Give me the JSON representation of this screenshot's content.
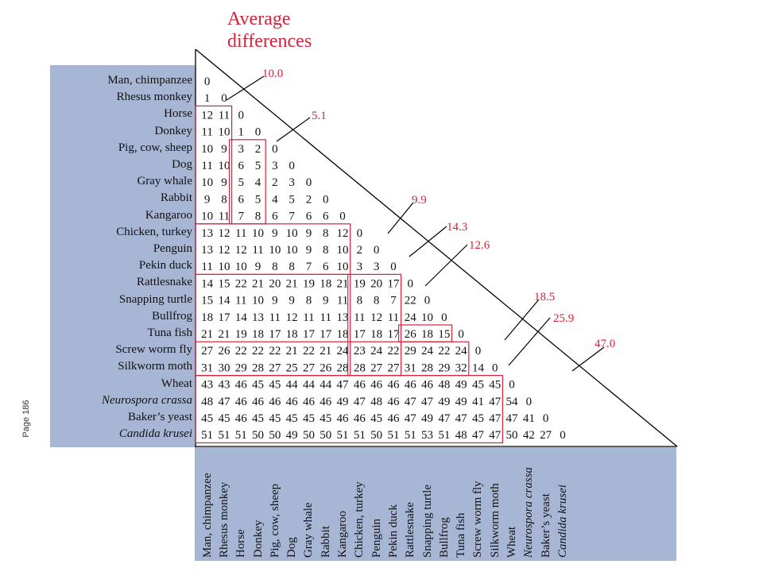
{
  "page_label": "Page 186",
  "title": [
    "Average",
    "differences"
  ],
  "species": [
    {
      "name": "Man, chimpanzee",
      "italic": false
    },
    {
      "name": "Rhesus monkey",
      "italic": false
    },
    {
      "name": "Horse",
      "italic": false
    },
    {
      "name": "Donkey",
      "italic": false
    },
    {
      "name": "Pig, cow, sheep",
      "italic": false
    },
    {
      "name": "Dog",
      "italic": false
    },
    {
      "name": "Gray whale",
      "italic": false
    },
    {
      "name": "Rabbit",
      "italic": false
    },
    {
      "name": "Kangaroo",
      "italic": false
    },
    {
      "name": "Chicken, turkey",
      "italic": false
    },
    {
      "name": "Penguin",
      "italic": false
    },
    {
      "name": "Pekin duck",
      "italic": false
    },
    {
      "name": "Rattlesnake",
      "italic": false
    },
    {
      "name": "Snapping turtle",
      "italic": false
    },
    {
      "name": "Bullfrog",
      "italic": false
    },
    {
      "name": "Tuna fish",
      "italic": false
    },
    {
      "name": "Screw worm fly",
      "italic": false
    },
    {
      "name": "Silkworm moth",
      "italic": false
    },
    {
      "name": "Wheat",
      "italic": false
    },
    {
      "name": "Neurospora crassa",
      "italic": true
    },
    {
      "name": "Baker’s yeast",
      "italic": false
    },
    {
      "name": "Candida krusei",
      "italic": true
    }
  ],
  "matrix": [
    [
      0
    ],
    [
      1,
      0
    ],
    [
      12,
      11,
      0
    ],
    [
      11,
      10,
      1,
      0
    ],
    [
      10,
      9,
      3,
      2,
      0
    ],
    [
      11,
      10,
      6,
      5,
      3,
      0
    ],
    [
      10,
      9,
      5,
      4,
      2,
      3,
      0
    ],
    [
      9,
      8,
      6,
      5,
      4,
      5,
      2,
      0
    ],
    [
      10,
      11,
      7,
      8,
      6,
      7,
      6,
      6,
      0
    ],
    [
      13,
      12,
      11,
      10,
      9,
      10,
      9,
      8,
      12,
      0
    ],
    [
      13,
      12,
      12,
      11,
      10,
      10,
      9,
      8,
      10,
      2,
      0
    ],
    [
      11,
      10,
      10,
      9,
      8,
      8,
      7,
      6,
      10,
      3,
      3,
      0
    ],
    [
      14,
      15,
      22,
      21,
      20,
      21,
      19,
      18,
      21,
      19,
      20,
      17,
      0
    ],
    [
      15,
      14,
      11,
      10,
      9,
      9,
      8,
      9,
      11,
      8,
      8,
      7,
      22,
      0
    ],
    [
      18,
      17,
      14,
      13,
      11,
      12,
      11,
      11,
      13,
      11,
      12,
      11,
      24,
      10,
      0
    ],
    [
      21,
      21,
      19,
      18,
      17,
      18,
      17,
      17,
      18,
      17,
      18,
      17,
      26,
      18,
      15,
      0
    ],
    [
      27,
      26,
      22,
      22,
      22,
      21,
      22,
      21,
      24,
      23,
      24,
      22,
      29,
      24,
      22,
      24,
      0
    ],
    [
      31,
      30,
      29,
      28,
      27,
      25,
      27,
      26,
      28,
      28,
      27,
      27,
      31,
      28,
      29,
      32,
      14,
      0
    ],
    [
      43,
      43,
      46,
      45,
      45,
      44,
      44,
      44,
      47,
      46,
      46,
      46,
      46,
      46,
      48,
      49,
      45,
      45,
      0
    ],
    [
      48,
      47,
      46,
      46,
      46,
      46,
      46,
      46,
      49,
      47,
      48,
      46,
      47,
      47,
      49,
      49,
      41,
      47,
      54,
      0
    ],
    [
      45,
      45,
      46,
      45,
      45,
      45,
      45,
      45,
      46,
      46,
      45,
      46,
      47,
      49,
      47,
      47,
      45,
      47,
      47,
      41,
      0
    ],
    [
      51,
      51,
      51,
      50,
      50,
      49,
      50,
      50,
      51,
      51,
      50,
      51,
      51,
      53,
      51,
      48,
      47,
      47,
      50,
      42,
      27,
      0
    ]
  ],
  "annotations": [
    {
      "text": "10.0"
    },
    {
      "text": "5.1"
    },
    {
      "text": "9.9"
    },
    {
      "text": "14.3"
    },
    {
      "text": "12.6"
    },
    {
      "text": "18.5"
    },
    {
      "text": "25.9"
    },
    {
      "text": "47.0"
    }
  ],
  "colors": {
    "highlight": "#d4233b",
    "panel": "#a8b6d6",
    "text": "#111111"
  }
}
